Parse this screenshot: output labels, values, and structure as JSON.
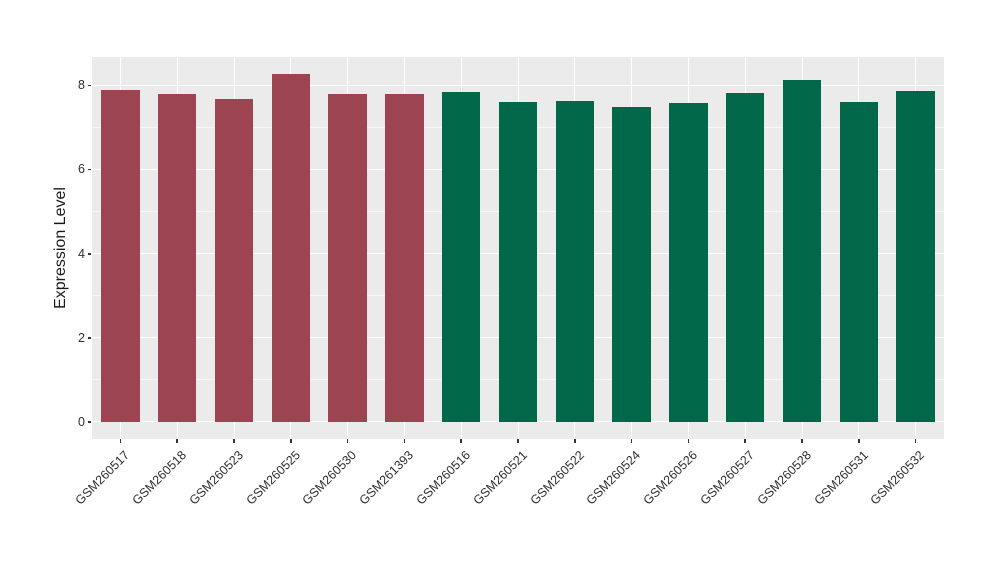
{
  "chart_data": {
    "type": "bar",
    "title": "",
    "xlabel": "",
    "ylabel": "Expression Level",
    "categories": [
      "GSM260517",
      "GSM260518",
      "GSM260523",
      "GSM260525",
      "GSM260530",
      "GSM261393",
      "GSM260516",
      "GSM260521",
      "GSM260522",
      "GSM260524",
      "GSM260526",
      "GSM260527",
      "GSM260528",
      "GSM260531",
      "GSM260532"
    ],
    "values": [
      7.88,
      7.78,
      7.68,
      8.26,
      7.8,
      7.8,
      7.83,
      7.6,
      7.63,
      7.48,
      7.58,
      7.82,
      8.12,
      7.59,
      7.86
    ],
    "bar_colors": [
      "#9D4452",
      "#9D4452",
      "#9D4452",
      "#9D4452",
      "#9D4452",
      "#9D4452",
      "#016849",
      "#016849",
      "#016849",
      "#016849",
      "#016849",
      "#016849",
      "#016849",
      "#016849",
      "#016849"
    ],
    "group_colors": {
      "maroon": "#9D4452",
      "green": "#016849"
    },
    "yticks": [
      0,
      2,
      4,
      6,
      8
    ],
    "yticks_minor": [
      1,
      3,
      5,
      7
    ],
    "ylim": [
      0,
      8.26
    ],
    "ylim_display": [
      -0.41,
      8.67
    ],
    "grid": true,
    "legend": "none",
    "panel_bg": "#EBEBEB",
    "grid_major_color": "#FFFFFF",
    "axis_text_color": "#2e2e2e"
  }
}
